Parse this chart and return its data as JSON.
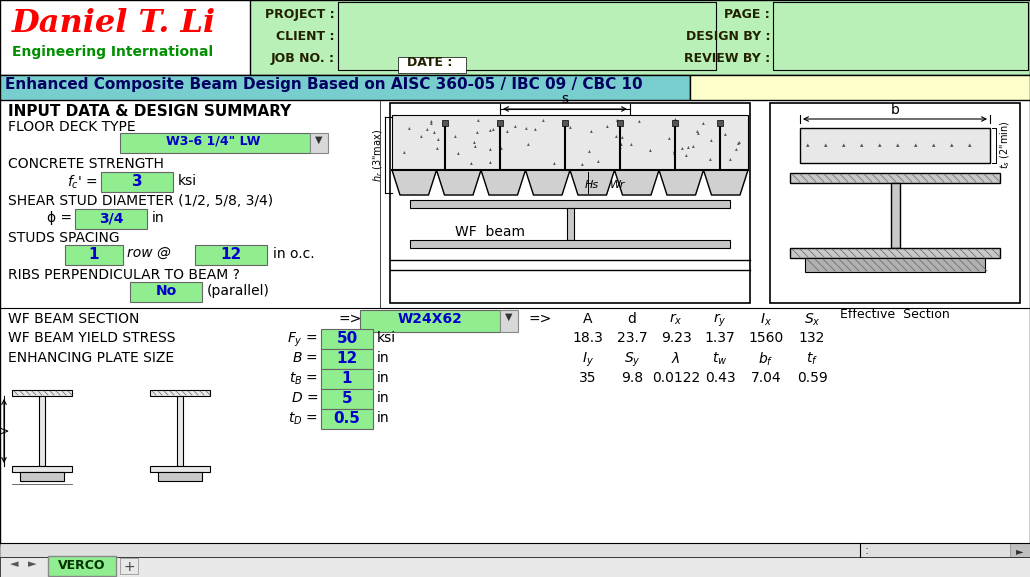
{
  "title": "Enhanced Composite Beam Design Based on AISC 360-05 / IBC 09 / CBC 10",
  "company_name": "Daniel T. Li",
  "company_sub": "Engineering International",
  "header_labels": [
    "PROJECT :",
    "CLIENT :",
    "JOB NO. :"
  ],
  "header_right": [
    "PAGE :",
    "DESIGN BY :",
    "REVIEW BY :"
  ],
  "date_label": "DATE :",
  "section_title": "INPUT DATA & DESIGN SUMMARY",
  "floor_deck_label": "FLOOR DECK TYPE",
  "floor_deck_value": "W3-6 1/4\" LW",
  "concrete_label": "CONCRETE STRENGTH",
  "fc_value": "3",
  "fc_unit": "ksi",
  "stud_label": "SHEAR STUD DIAMETER (1/2, 5/8, 3/4)",
  "phi_value": "3/4",
  "phi_unit": "in",
  "studs_label": "STUDS SPACING",
  "studs_row_value": "1",
  "studs_row_text": "row @",
  "studs_spacing_value": "12",
  "studs_spacing_unit": "in o.c.",
  "ribs_label": "RIBS PERPENDICULAR TO BEAM ?",
  "ribs_value": "No",
  "ribs_note": "(parallel)",
  "wf_section_label": "WF BEAM SECTION",
  "wf_section_value": "W24X62",
  "wf_yield_label": "WF BEAM YIELD STRESS",
  "fy_value": "50",
  "fy_unit": "ksi",
  "plate_label": "ENHANCING PLATE SIZE",
  "B_value": "12",
  "B_unit": "in",
  "tB_value": "1",
  "tB_unit": "in",
  "D_value": "5",
  "D_unit": "in",
  "tD_value": "0.5",
  "tD_unit": "in",
  "col_headers": [
    "A",
    "d",
    "rx",
    "ry",
    "Ix",
    "Sx"
  ],
  "col_values_row1": [
    "18.3",
    "23.7",
    "9.23",
    "1.37",
    "1560",
    "132"
  ],
  "col_headers2": [
    "Iy",
    "Sy",
    "λ",
    "tw",
    "bf",
    "tf"
  ],
  "col_values_row2": [
    "35",
    "9.8",
    "0.0122",
    "0.43",
    "7.04",
    "0.59"
  ],
  "eff_section_label": "Effective  Section",
  "tab_label": "VERCO",
  "header_bg": "#b8f0b8",
  "title_bg": "#70c8c8",
  "title_right_bg": "#fffff0",
  "input_green": "#90ee90",
  "company_color": "#ff0000",
  "sub_color": "#009000"
}
